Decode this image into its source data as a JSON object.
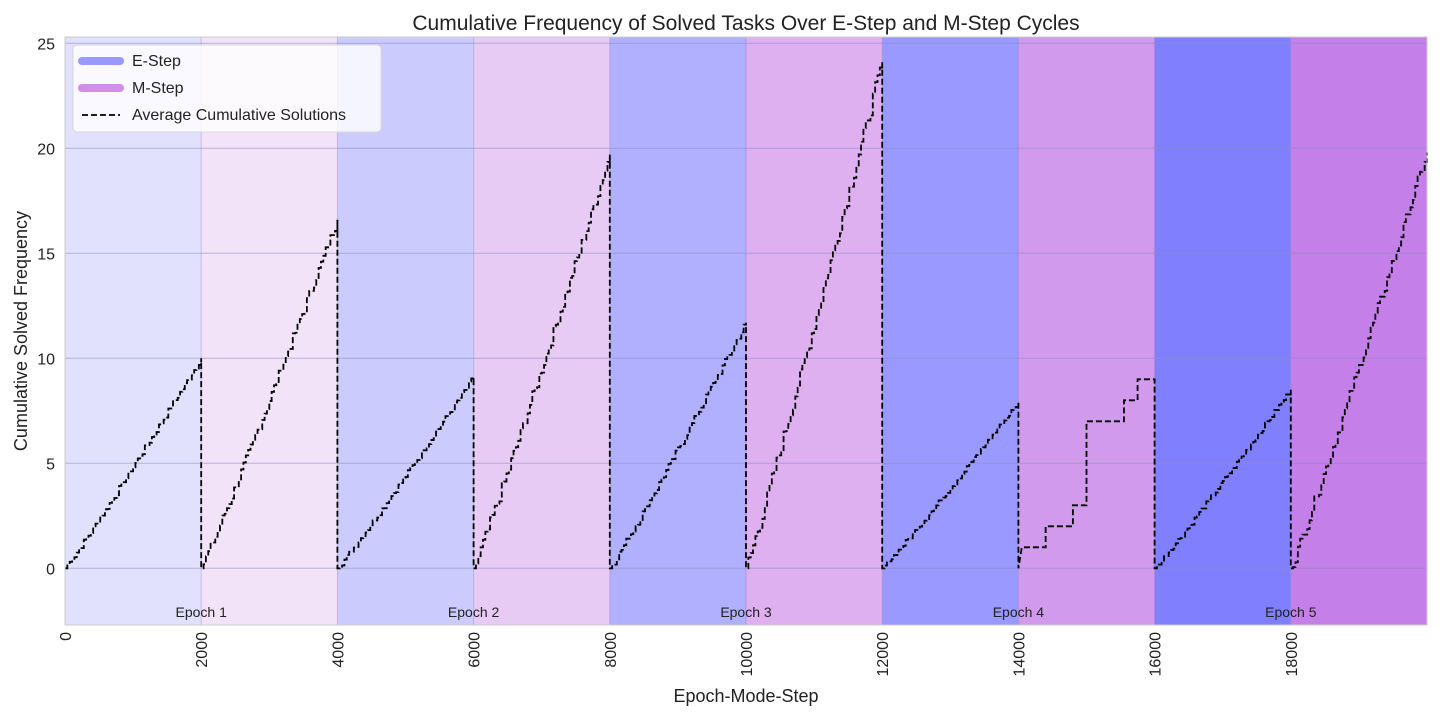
{
  "chart_data": {
    "type": "line",
    "title": "Cumulative Frequency of Solved Tasks Over E-Step and M-Step Cycles",
    "xlabel": "Epoch-Mode-Step",
    "ylabel": "Cumulative Solved Frequency",
    "xlim": [
      0,
      20000
    ],
    "ylim": [
      -2.7,
      25.3
    ],
    "x_ticks": [
      0,
      2000,
      4000,
      6000,
      8000,
      10000,
      12000,
      14000,
      16000,
      18000
    ],
    "y_ticks": [
      0,
      5,
      10,
      15,
      20,
      25
    ],
    "grid": true,
    "legend_position": "top-left",
    "legend": [
      {
        "label": "E-Step",
        "kind": "band",
        "color": "#9999ff"
      },
      {
        "label": "M-Step",
        "kind": "band",
        "color": "#d08ee8"
      },
      {
        "label": "Average Cumulative Solutions",
        "kind": "dashed-line",
        "color": "#000000"
      }
    ],
    "bands": [
      {
        "mode": "E-Step",
        "start": 0,
        "end": 2000,
        "color": "#e1e1fd"
      },
      {
        "mode": "M-Step",
        "start": 2000,
        "end": 4000,
        "color": "#f3e3f9"
      },
      {
        "mode": "E-Step",
        "start": 4000,
        "end": 6000,
        "color": "#cbcbfe"
      },
      {
        "mode": "M-Step",
        "start": 6000,
        "end": 8000,
        "color": "#e8cbf5"
      },
      {
        "mode": "E-Step",
        "start": 8000,
        "end": 10000,
        "color": "#b0b0fe"
      },
      {
        "mode": "M-Step",
        "start": 10000,
        "end": 12000,
        "color": "#deb0f0"
      },
      {
        "mode": "E-Step",
        "start": 12000,
        "end": 14000,
        "color": "#9999ff"
      },
      {
        "mode": "M-Step",
        "start": 14000,
        "end": 16000,
        "color": "#d29aed"
      },
      {
        "mode": "E-Step",
        "start": 16000,
        "end": 18000,
        "color": "#8080ff"
      },
      {
        "mode": "M-Step",
        "start": 18000,
        "end": 20000,
        "color": "#c47fe8"
      }
    ],
    "epoch_labels": [
      {
        "text": "Epoch 1",
        "x": 2000
      },
      {
        "text": "Epoch 2",
        "x": 6000
      },
      {
        "text": "Epoch 3",
        "x": 10000
      },
      {
        "text": "Epoch 4",
        "x": 14000
      },
      {
        "text": "Epoch 5",
        "x": 18000
      }
    ],
    "series": [
      {
        "name": "Average Cumulative Solutions",
        "style": "dashed",
        "color": "#000000",
        "segments": [
          {
            "x_start": 0,
            "x_end": 2000,
            "y_end": 10.0
          },
          {
            "x_start": 2000,
            "x_end": 4000,
            "y_end": 16.6
          },
          {
            "x_start": 4000,
            "x_end": 6000,
            "y_end": 9.1
          },
          {
            "x_start": 6000,
            "x_end": 8000,
            "y_end": 19.7
          },
          {
            "x_start": 8000,
            "x_end": 10000,
            "y_end": 11.7
          },
          {
            "x_start": 10000,
            "x_end": 12000,
            "y_end": 24.1
          },
          {
            "x_start": 12000,
            "x_end": 14000,
            "y_end": 7.9
          },
          {
            "x_start": 14000,
            "x_end": 16000,
            "y_end": 9.1
          },
          {
            "x_start": 16000,
            "x_end": 18000,
            "y_end": 8.5
          },
          {
            "x_start": 18000,
            "x_end": 20000,
            "y_end": 19.8
          }
        ],
        "epoch4_mstep_points": [
          [
            14000,
            0
          ],
          [
            14050,
            1.0
          ],
          [
            14400,
            1.0
          ],
          [
            14400,
            2.0
          ],
          [
            14800,
            2.0
          ],
          [
            14800,
            3.0
          ],
          [
            15000,
            3.0
          ],
          [
            15000,
            7.0
          ],
          [
            15550,
            7.0
          ],
          [
            15550,
            8.0
          ],
          [
            15750,
            8.0
          ],
          [
            15750,
            9.0
          ],
          [
            16000,
            9.0
          ]
        ]
      }
    ]
  }
}
